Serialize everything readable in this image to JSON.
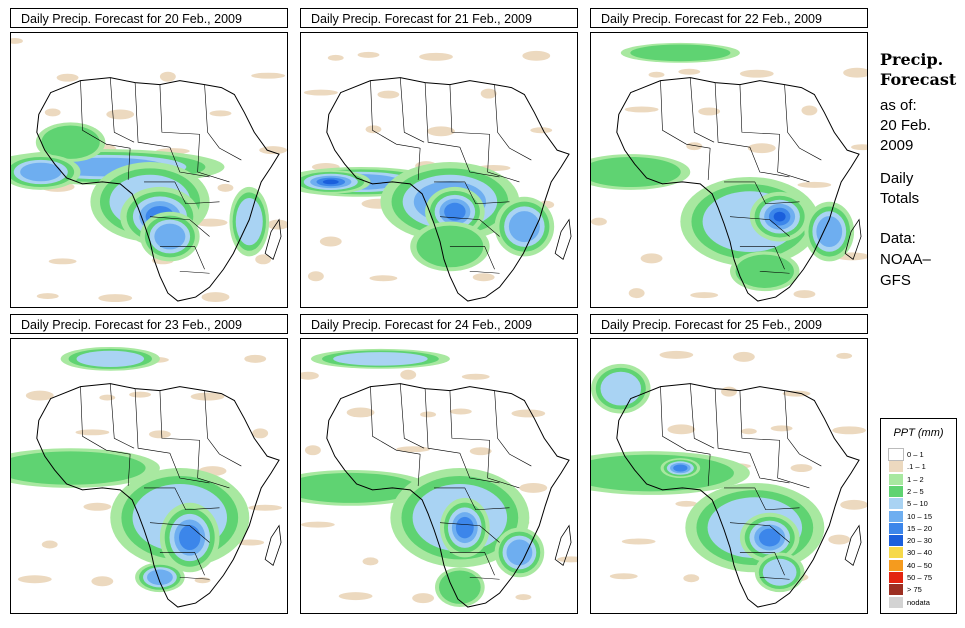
{
  "panels": [
    {
      "title": "Daily Precip. Forecast for  20 Feb., 2009"
    },
    {
      "title": "Daily Precip. Forecast for  21 Feb., 2009"
    },
    {
      "title": "Daily Precip. Forecast for  22 Feb., 2009"
    },
    {
      "title": "Daily Precip. Forecast for  23 Feb., 2009"
    },
    {
      "title": "Daily Precip. Forecast for  24 Feb., 2009"
    },
    {
      "title": "Daily Precip. Forecast for  25 Feb., 2009"
    }
  ],
  "sidebar": {
    "title_line1": "Precip.",
    "title_line2": "Forecast",
    "as_of": "as of:",
    "date_line1": "20 Feb.",
    "date_line2": "2009",
    "daily_line1": "Daily",
    "daily_line2": "Totals",
    "data_line1": "Data:",
    "data_line2": "NOAA–",
    "data_line3": "GFS"
  },
  "legend": {
    "title": "PPT (mm)",
    "items": [
      {
        "label": "0 – 1",
        "color": "#ffffff"
      },
      {
        "label": ".1 – 1",
        "color": "#ecd9bf"
      },
      {
        "label": "1 – 2",
        "color": "#a8e8a0"
      },
      {
        "label": "2 – 5",
        "color": "#5fd372"
      },
      {
        "label": "5 – 10",
        "color": "#a9d3f3"
      },
      {
        "label": "10 – 15",
        "color": "#6eaef0"
      },
      {
        "label": "15 – 20",
        "color": "#3c86ea"
      },
      {
        "label": "20 – 30",
        "color": "#1a5fdc"
      },
      {
        "label": "30 – 40",
        "color": "#f6d94a"
      },
      {
        "label": "40 – 50",
        "color": "#f59b1e"
      },
      {
        "label": "50 – 75",
        "color": "#e32410"
      },
      {
        "label": "> 75",
        "color": "#9c2f22"
      },
      {
        "label": "nodata",
        "color": "#d3d3d3"
      }
    ]
  }
}
